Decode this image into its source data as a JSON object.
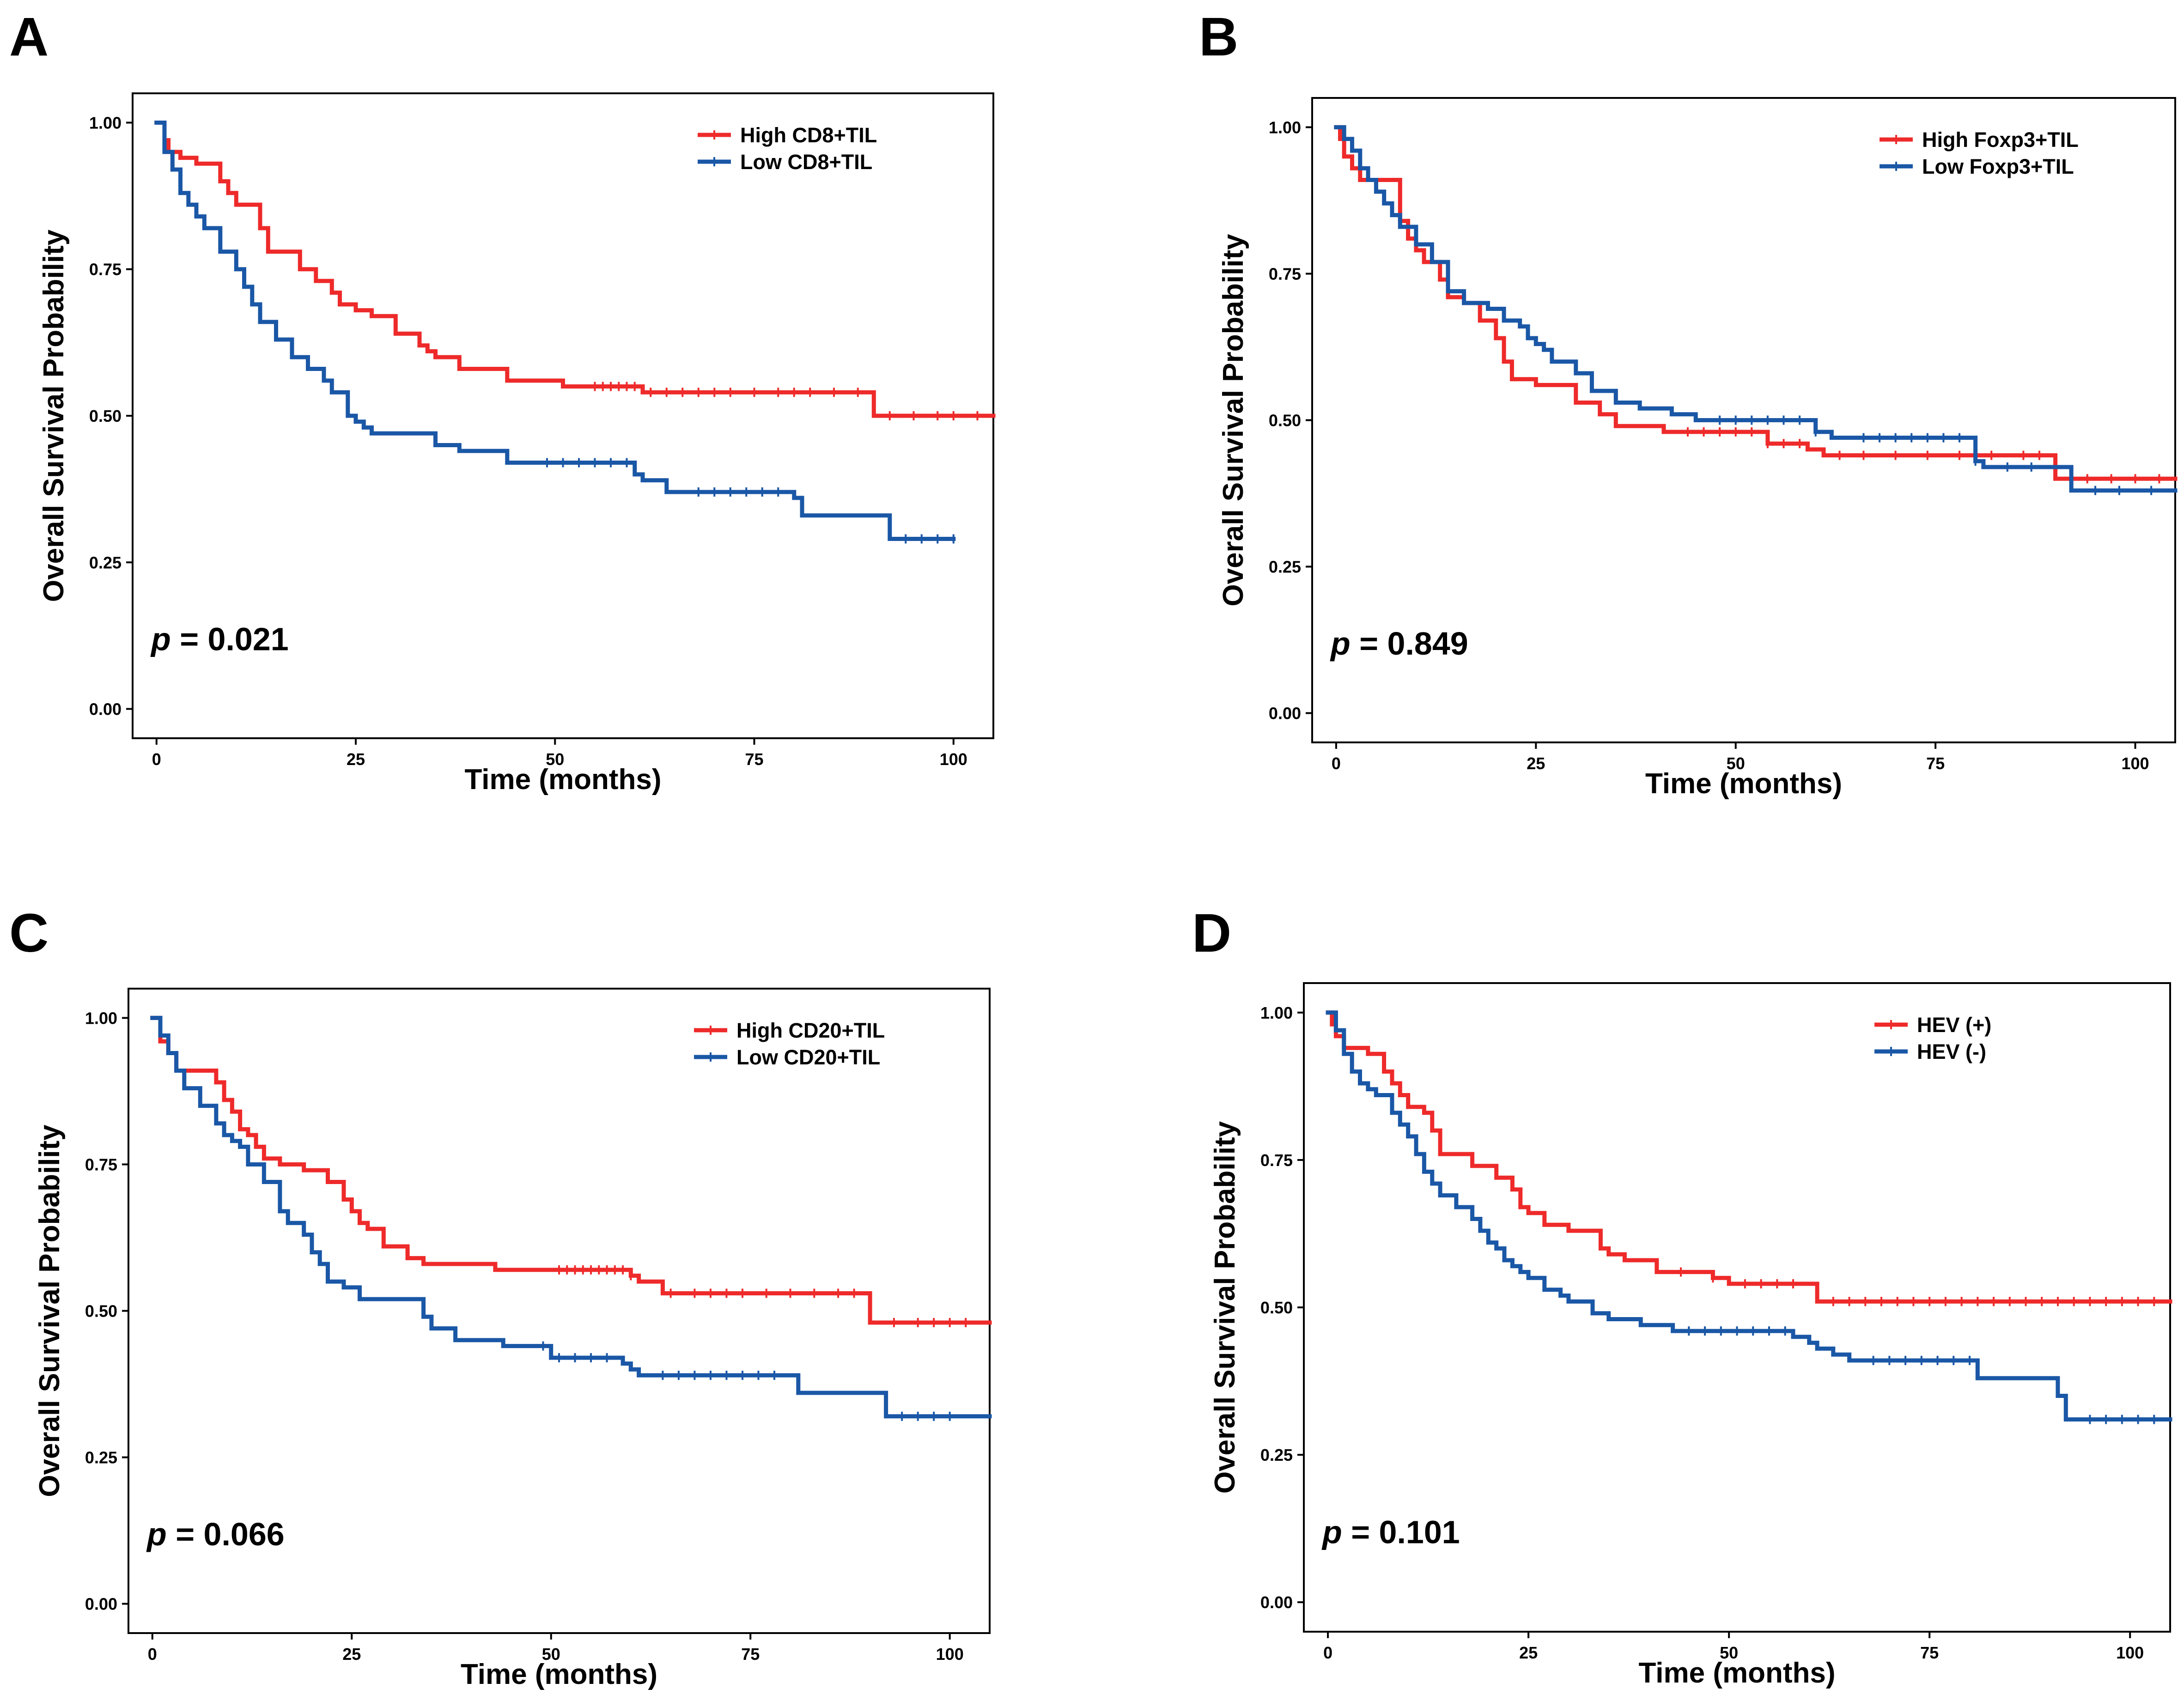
{
  "colors": {
    "high": "#ee2a2a",
    "low": "#1a57a6"
  },
  "chart_data": [
    {
      "panel": "A",
      "type": "line",
      "subtype": "kaplan-meier",
      "xlabel": "Time (months)",
      "ylabel": "Overall Survival Probability",
      "xlim": [
        -3,
        105
      ],
      "ylim": [
        -0.05,
        1.05
      ],
      "xticks": [
        "0",
        "25",
        "50",
        "75",
        "100"
      ],
      "yticks": [
        "0.00",
        "0.25",
        "0.50",
        "0.75",
        "1.00"
      ],
      "p_prefix": "p",
      "p_value": "= 0.021",
      "legend_position": "top-right",
      "series": [
        {
          "name": "High CD8+TIL",
          "color": "#ee2a2a",
          "x": [
            0,
            1,
            1.5,
            3,
            5,
            8,
            9,
            10,
            13,
            14,
            18,
            20,
            22,
            23,
            25,
            27,
            30,
            33,
            34,
            35,
            38,
            44,
            51,
            53,
            55,
            61,
            90,
            105
          ],
          "y": [
            1.0,
            0.97,
            0.95,
            0.94,
            0.93,
            0.9,
            0.88,
            0.86,
            0.82,
            0.78,
            0.75,
            0.73,
            0.71,
            0.69,
            0.68,
            0.67,
            0.64,
            0.62,
            0.61,
            0.6,
            0.58,
            0.56,
            0.55,
            0.55,
            0.55,
            0.54,
            0.5,
            0.5
          ],
          "censor_x": [
            55,
            56,
            57,
            58,
            59,
            60,
            62,
            64,
            66,
            68,
            70,
            72,
            75,
            78,
            80,
            82,
            85,
            88,
            92,
            95,
            98,
            100,
            103
          ]
        },
        {
          "name": "Low CD8+TIL",
          "color": "#1a57a6",
          "x": [
            0,
            1,
            2,
            3,
            4,
            5,
            6,
            8,
            10,
            11,
            12,
            13,
            15,
            17,
            19,
            21,
            22,
            24,
            25,
            26,
            27,
            30,
            35,
            38,
            44,
            60,
            61,
            64,
            80,
            81,
            92,
            100
          ],
          "y": [
            1.0,
            0.95,
            0.92,
            0.88,
            0.86,
            0.84,
            0.82,
            0.78,
            0.75,
            0.72,
            0.69,
            0.66,
            0.63,
            0.6,
            0.58,
            0.56,
            0.54,
            0.5,
            0.49,
            0.48,
            0.47,
            0.47,
            0.45,
            0.44,
            0.42,
            0.4,
            0.39,
            0.37,
            0.36,
            0.33,
            0.29,
            0.29
          ],
          "censor_x": [
            49,
            51,
            53,
            55,
            57,
            59,
            68,
            70,
            72,
            74,
            76,
            78,
            94,
            96,
            98,
            100
          ]
        }
      ]
    },
    {
      "panel": "B",
      "type": "line",
      "subtype": "kaplan-meier",
      "xlabel": "Time (months)",
      "ylabel": "Overall Survival Probability",
      "xlim": [
        -3,
        105
      ],
      "ylim": [
        -0.05,
        1.05
      ],
      "xticks": [
        "0",
        "25",
        "50",
        "75",
        "100"
      ],
      "yticks": [
        "0.00",
        "0.25",
        "0.50",
        "0.75",
        "1.00"
      ],
      "p_prefix": "p",
      "p_value": "= 0.849",
      "legend_position": "top-right",
      "series": [
        {
          "name": "High Foxp3+TIL",
          "color": "#ee2a2a",
          "x": [
            0,
            0.5,
            1,
            2,
            3,
            4,
            8,
            9,
            10,
            11,
            13,
            14,
            16,
            18,
            20,
            21,
            22,
            25,
            30,
            33,
            35,
            41,
            54,
            59,
            61,
            90,
            105
          ],
          "y": [
            1.0,
            0.98,
            0.95,
            0.93,
            0.91,
            0.91,
            0.84,
            0.81,
            0.79,
            0.77,
            0.74,
            0.71,
            0.7,
            0.67,
            0.64,
            0.6,
            0.57,
            0.56,
            0.53,
            0.51,
            0.49,
            0.48,
            0.46,
            0.45,
            0.44,
            0.4,
            0.4
          ],
          "censor_x": [
            44,
            46,
            48,
            50,
            52,
            54,
            56,
            58,
            63,
            66,
            70,
            74,
            78,
            82,
            86,
            88,
            94,
            97,
            100,
            103
          ]
        },
        {
          "name": "Low Foxp3+TIL",
          "color": "#1a57a6",
          "x": [
            0,
            1,
            2,
            3,
            4,
            5,
            6,
            7,
            8,
            10,
            12,
            14,
            16,
            19,
            21,
            23,
            24,
            25,
            26,
            27,
            30,
            32,
            35,
            38,
            42,
            45,
            60,
            62,
            80,
            81,
            92,
            105
          ],
          "y": [
            1.0,
            0.98,
            0.96,
            0.93,
            0.91,
            0.89,
            0.87,
            0.85,
            0.83,
            0.8,
            0.77,
            0.72,
            0.7,
            0.69,
            0.67,
            0.66,
            0.64,
            0.63,
            0.62,
            0.6,
            0.58,
            0.55,
            0.53,
            0.52,
            0.51,
            0.5,
            0.48,
            0.47,
            0.43,
            0.42,
            0.38,
            0.38
          ],
          "censor_x": [
            48,
            50,
            52,
            54,
            56,
            58,
            60,
            66,
            68,
            70,
            72,
            74,
            76,
            78,
            80,
            84,
            87,
            95,
            98,
            102
          ]
        }
      ]
    },
    {
      "panel": "C",
      "type": "line",
      "subtype": "kaplan-meier",
      "xlabel": "Time (months)",
      "ylabel": "Overall Survival Probability",
      "xlim": [
        -3,
        105
      ],
      "ylim": [
        -0.05,
        1.05
      ],
      "xticks": [
        "0",
        "25",
        "50",
        "75",
        "100"
      ],
      "yticks": [
        "0.00",
        "0.25",
        "0.50",
        "0.75",
        "1.00"
      ],
      "p_prefix": "p",
      "p_value": "= 0.066",
      "legend_position": "top-right",
      "series": [
        {
          "name": "High CD20+TIL",
          "color": "#ee2a2a",
          "x": [
            0,
            1,
            2,
            3,
            5,
            8,
            9,
            10,
            11,
            12,
            13,
            14,
            16,
            19,
            22,
            24,
            25,
            26,
            27,
            29,
            32,
            34,
            35,
            43,
            60,
            61,
            64,
            90,
            105
          ],
          "y": [
            1.0,
            0.96,
            0.94,
            0.91,
            0.91,
            0.89,
            0.86,
            0.84,
            0.81,
            0.8,
            0.78,
            0.76,
            0.75,
            0.74,
            0.72,
            0.69,
            0.67,
            0.65,
            0.64,
            0.61,
            0.59,
            0.58,
            0.58,
            0.57,
            0.56,
            0.55,
            0.53,
            0.48,
            0.48
          ],
          "censor_x": [
            51,
            52,
            53,
            54,
            55,
            56,
            57,
            58,
            59,
            60,
            65,
            68,
            70,
            72,
            74,
            77,
            80,
            83,
            86,
            88,
            93,
            96,
            98,
            100,
            102
          ]
        },
        {
          "name": "Low CD20+TIL",
          "color": "#1a57a6",
          "x": [
            0,
            1,
            2,
            3,
            4,
            6,
            8,
            9,
            10,
            11,
            12,
            14,
            16,
            17,
            19,
            20,
            21,
            22,
            24,
            26,
            34,
            35,
            38,
            44,
            50,
            59,
            60,
            61,
            81,
            92,
            105
          ],
          "y": [
            1.0,
            0.97,
            0.94,
            0.91,
            0.88,
            0.85,
            0.82,
            0.8,
            0.79,
            0.78,
            0.75,
            0.72,
            0.67,
            0.65,
            0.63,
            0.6,
            0.58,
            0.55,
            0.54,
            0.52,
            0.49,
            0.47,
            0.45,
            0.44,
            0.42,
            0.41,
            0.4,
            0.39,
            0.36,
            0.32,
            0.32
          ],
          "censor_x": [
            49,
            51,
            53,
            55,
            57,
            64,
            66,
            68,
            70,
            72,
            74,
            76,
            78,
            94,
            96,
            98,
            100
          ]
        }
      ]
    },
    {
      "panel": "D",
      "type": "line",
      "subtype": "kaplan-meier",
      "xlabel": "Time (months)",
      "ylabel": "Overall Survival Probability",
      "xlim": [
        -3,
        105
      ],
      "ylim": [
        -0.05,
        1.05
      ],
      "xticks": [
        "0",
        "25",
        "50",
        "75",
        "100"
      ],
      "yticks": [
        "0.00",
        "0.25",
        "0.50",
        "0.75",
        "1.00"
      ],
      "p_prefix": "p",
      "p_value": "= 0.101",
      "legend_position": "top-right",
      "series": [
        {
          "name": "HEV (+)",
          "color": "#ee2a2a",
          "x": [
            0,
            0.5,
            1,
            2,
            3,
            5,
            7,
            8,
            9,
            10,
            12,
            13,
            14,
            18,
            21,
            23,
            24,
            25,
            27,
            30,
            34,
            35,
            37,
            41,
            48,
            50,
            61,
            105
          ],
          "y": [
            1.0,
            0.98,
            0.96,
            0.94,
            0.94,
            0.93,
            0.9,
            0.88,
            0.86,
            0.84,
            0.83,
            0.8,
            0.76,
            0.74,
            0.72,
            0.7,
            0.67,
            0.66,
            0.64,
            0.63,
            0.6,
            0.59,
            0.58,
            0.56,
            0.55,
            0.54,
            0.51,
            0.51
          ],
          "censor_x": [
            44,
            48,
            52,
            54,
            56,
            58,
            63,
            65,
            67,
            69,
            71,
            73,
            75,
            77,
            79,
            81,
            83,
            85,
            87,
            89,
            91,
            93,
            95,
            97,
            99,
            101,
            103
          ]
        },
        {
          "name": "HEV (-)",
          "color": "#1a57a6",
          "x": [
            0,
            1,
            2,
            3,
            4,
            5,
            6,
            8,
            9,
            10,
            11,
            12,
            13,
            14,
            16,
            18,
            19,
            20,
            21,
            22,
            23,
            24,
            25,
            27,
            29,
            30,
            33,
            35,
            39,
            43,
            58,
            60,
            61,
            63,
            65,
            81,
            91,
            92,
            105
          ],
          "y": [
            1.0,
            0.97,
            0.93,
            0.9,
            0.88,
            0.87,
            0.86,
            0.83,
            0.81,
            0.79,
            0.76,
            0.73,
            0.71,
            0.69,
            0.67,
            0.65,
            0.63,
            0.61,
            0.6,
            0.58,
            0.57,
            0.56,
            0.55,
            0.53,
            0.52,
            0.51,
            0.49,
            0.48,
            0.47,
            0.46,
            0.45,
            0.44,
            0.43,
            0.42,
            0.41,
            0.38,
            0.35,
            0.31,
            0.31
          ],
          "censor_x": [
            45,
            47,
            49,
            51,
            53,
            55,
            57,
            68,
            70,
            72,
            74,
            76,
            78,
            80,
            95,
            97,
            99,
            101,
            103
          ]
        }
      ]
    }
  ]
}
